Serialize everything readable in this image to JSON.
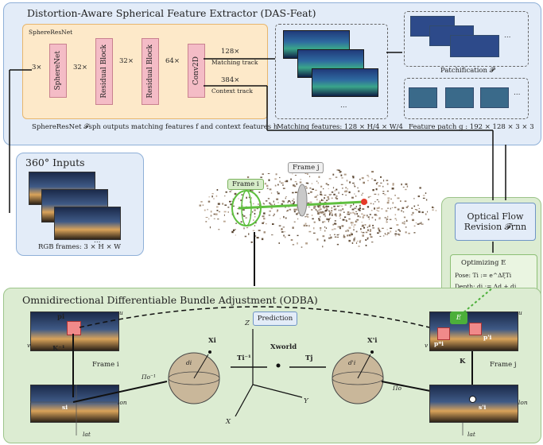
{
  "das": {
    "title": "Distortion-Aware Spherical Feature Extractor (DAS-Feat)",
    "net_label": "SphereResNet",
    "in_mult": "3×",
    "block_spherenet": "SphereNet",
    "mult_32a": "32×",
    "block_res1": "Residual Block",
    "mult_32b": "32×",
    "block_res2": "Residual Block",
    "mult_64": "64×",
    "block_conv": "Conv2D",
    "out1_mult": "128×",
    "out1_label": "Matching track",
    "out2_mult": "384×",
    "out2_label": "Context track",
    "caption": "SphereResNet 𝓕sph outputs matching features f and context features h",
    "matching_caption": "Matching features: 128 × H/4 × W/4",
    "patch_title": "Patchification 𝓟",
    "patch_caption": "Feature patch g :  192 × 128 × 3 × 3",
    "ellipsis": "…"
  },
  "inputs": {
    "title": "360° Inputs",
    "caption": "RGB frames:  3 × H × W",
    "ellipsis": "…"
  },
  "cloud": {
    "frame_i": "Frame i",
    "frame_j": "Frame j"
  },
  "flow": {
    "label1": "Optical Flow",
    "label2": "Revision 𝓕rnn"
  },
  "optimizing": {
    "title": "Optimizing E",
    "pose": "Pose:  Ti := e^ΔξTi",
    "depth": "Depth:  di := Δd + di"
  },
  "odba": {
    "title": "Omnidirectional Differentiable Bundle Adjustment (ODBA)",
    "prediction": "Prediction",
    "E_label": "E",
    "p_i": "pi",
    "u_left": "u",
    "v_left": "v",
    "Kinv": "K⁻¹",
    "frame_i": "Frame i",
    "s_i": "si",
    "lon_left": "lon",
    "lat_left": "lat",
    "pi_inv": "Πo⁻¹",
    "Xi": "Xi",
    "di": "di",
    "Ti_inv": "Ti⁻¹",
    "Z": "Z",
    "Xworld": "Xworld",
    "Y": "Y",
    "X": "X",
    "Tj": "Tj",
    "Xi_prime": "X'i",
    "di_prime": "d'i",
    "pi_o": "Πo",
    "u_right": "u",
    "v_right": "v",
    "p_star": "p*i",
    "p_prime": "p'i",
    "K": "K",
    "frame_j": "Frame j",
    "s_prime": "s'i",
    "lon_right": "lon",
    "lat_right": "lat"
  },
  "colors": {
    "blue_panel": "#e3ecf8",
    "green_panel": "#dcecd2",
    "orange_panel": "#fde9c9",
    "block_pink": "#f4bcc6",
    "track_green": "#5fbf3f",
    "point_red": "#e53a2a"
  }
}
